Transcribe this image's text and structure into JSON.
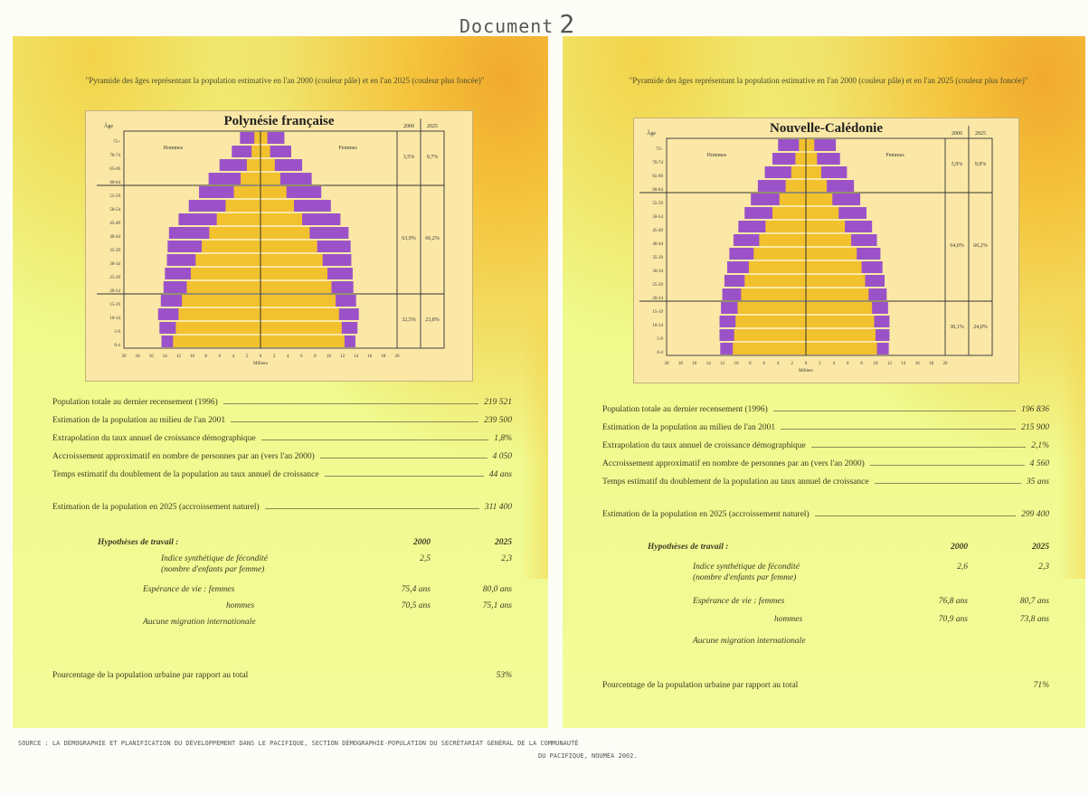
{
  "document": {
    "title_word": "Document",
    "title_num": "2"
  },
  "panels": [
    {
      "caption": "\"Pyramide des âges représentant la population estimative en l'an 2000 (couleur pâle) et en l'an 2025 (couleur plus foncée)\"",
      "territory": "Polynésie française",
      "left_label": "Hommes",
      "right_label": "Femmes",
      "col_year_1": "2000",
      "col_year_2": "2025",
      "age_label": "Âge",
      "axis_unit": "Milliers",
      "shares": [
        {
          "a": "3,5%",
          "b": "9,7%"
        },
        {
          "a": "63,9%",
          "b": "66,2%"
        },
        {
          "a": "32,5%",
          "b": "23,8%"
        }
      ],
      "stats": [
        {
          "label": "Population totale au dernier recensement (1996)",
          "value": "219 521"
        },
        {
          "label": "Estimation de la population au milieu de l'an 2001",
          "value": "239 500"
        },
        {
          "label": "Extrapolation du taux annuel de croissance démographique",
          "value": "1,8%"
        },
        {
          "label": "Accroissement approximatif en nombre de personnes par an (vers l'an 2000)",
          "value": "4 050"
        },
        {
          "label": "Temps estimatif du doublement de la population au taux annuel de croissance",
          "value": "44 ans"
        },
        {
          "label": "Estimation de la population en 2025 (accroissement naturel)",
          "value": "311 400"
        }
      ],
      "hyp": {
        "title": "Hypothèses de travail :",
        "y1": "2000",
        "y2": "2025",
        "fertility": "Indice synthétique de fécondité",
        "fertility_sub": "(nombre d'enfants par femme)",
        "fert_2000": "2,5",
        "fert_2025": "2,3",
        "life": "Espérance de vie : femmes",
        "life_f_2000": "75,4 ans",
        "life_f_2025": "80,0 ans",
        "men": "hommes",
        "life_m_2000": "70,5 ans",
        "life_m_2025": "75,1 ans",
        "migration": "Aucune migration internationale"
      },
      "urban": {
        "label": "Pourcentage de la population urbaine par rapport au total",
        "value": "53%"
      }
    },
    {
      "caption": "\"Pyramide des âges représentant la population estimative en l'an 2000 (couleur pâle) et en l'an 2025 (couleur plus foncée)\"",
      "territory": "Nouvelle-Calédonie",
      "left_label": "Hommes",
      "right_label": "Femmes",
      "col_year_1": "2000",
      "col_year_2": "2025",
      "age_label": "Âge",
      "axis_unit": "Milliers",
      "shares": [
        {
          "a": "5,9%",
          "b": "9,9%"
        },
        {
          "a": "64,0%",
          "b": "66,2%"
        },
        {
          "a": "30,1%",
          "b": "24,0%"
        }
      ],
      "stats": [
        {
          "label": "Population totale au dernier recensement (1996)",
          "value": "196 836"
        },
        {
          "label": "Estimation de la population au milieu de l'an 2001",
          "value": "215 900"
        },
        {
          "label": "Extrapolation du taux annuel de croissance démographique",
          "value": "2,1%"
        },
        {
          "label": "Accroissement approximatif en nombre de personnes par an (vers l'an 2000)",
          "value": "4 560"
        },
        {
          "label": "Temps estimatif du doublement de la population au taux annuel de croissance",
          "value": "35 ans"
        },
        {
          "label": "Estimation de la population en 2025 (accroissement naturel)",
          "value": "299 400"
        }
      ],
      "hyp": {
        "title": "Hypothèses de travail :",
        "y1": "2000",
        "y2": "2025",
        "fertility": "Indice synthétique de fécondité",
        "fertility_sub": "(nombre d'enfants par femme)",
        "fert_2000": "2,6",
        "fert_2025": "2,3",
        "life": "Espérance de vie : femmes",
        "life_f_2000": "76,8 ans",
        "life_f_2025": "80,7 ans",
        "men": "hommes",
        "life_m_2000": "70,9 ans",
        "life_m_2025": "73,8 ans",
        "migration": "Aucune migration internationale"
      },
      "urban": {
        "label": "Pourcentage de la population urbaine par rapport au total",
        "value": "71%"
      }
    }
  ],
  "source": {
    "line1": "SOURCE : LA DÉMOGRAPHIE ET PLANIFICATION DU DÉVELOPPEMENT DANS LE PACIFIQUE, SECTION DÉMOGRAPHIE-POPULATION DU SECRÉTARIAT GÉNÉRAL DE LA COMMUNAUTÉ",
    "line2": "DU PACIFIQUE, NOUMÉA 2002."
  },
  "chart_data": [
    {
      "type": "bar",
      "title": "Polynésie française",
      "categories": [
        "0-4",
        "5-9",
        "10-14",
        "15-19",
        "20-24",
        "25-29",
        "30-34",
        "35-39",
        "40-44",
        "45-49",
        "50-54",
        "55-59",
        "60-64",
        "65-69",
        "70-74",
        "75+"
      ],
      "series": [
        {
          "name": "Hommes 2000",
          "values": [
            12.8,
            12.4,
            12.0,
            11.5,
            10.8,
            10.2,
            9.5,
            8.6,
            7.5,
            6.4,
            5.1,
            3.9,
            2.9,
            2.0,
            1.3,
            0.9
          ]
        },
        {
          "name": "Hommes 2025",
          "values": [
            14.5,
            14.8,
            15.0,
            14.6,
            14.2,
            14.0,
            13.7,
            13.6,
            13.4,
            12.0,
            10.5,
            9.0,
            7.6,
            6.0,
            4.2,
            3.0
          ]
        },
        {
          "name": "Femmes 2000",
          "values": [
            12.3,
            11.9,
            11.5,
            11.0,
            10.4,
            9.8,
            9.1,
            8.3,
            7.2,
            6.1,
            4.9,
            3.8,
            2.9,
            2.1,
            1.4,
            1.0
          ]
        },
        {
          "name": "Femmes 2025",
          "values": [
            13.9,
            14.2,
            14.4,
            14.0,
            13.6,
            13.5,
            13.3,
            13.2,
            12.9,
            11.7,
            10.3,
            8.9,
            7.5,
            6.1,
            4.5,
            3.5
          ]
        }
      ],
      "xlim": [
        -20,
        20
      ],
      "xlabel": "Milliers",
      "ylabel": "Âge"
    },
    {
      "type": "bar",
      "title": "Nouvelle-Calédonie",
      "categories": [
        "0-4",
        "5-9",
        "10-14",
        "15-19",
        "20-24",
        "25-29",
        "30-34",
        "35-39",
        "40-44",
        "45-49",
        "50-54",
        "55-59",
        "60-64",
        "65-69",
        "70-74",
        "75+"
      ],
      "series": [
        {
          "name": "Hommes 2000",
          "values": [
            10.5,
            10.3,
            10.1,
            9.8,
            9.3,
            8.8,
            8.2,
            7.5,
            6.7,
            5.8,
            4.8,
            3.8,
            2.9,
            2.1,
            1.5,
            1.0
          ]
        },
        {
          "name": "Hommes 2025",
          "values": [
            12.3,
            12.4,
            12.4,
            12.2,
            12.0,
            11.7,
            11.3,
            11.0,
            10.4,
            9.7,
            8.8,
            7.9,
            6.9,
            5.9,
            4.8,
            4.0
          ]
        },
        {
          "name": "Femmes 2000",
          "values": [
            10.2,
            10.0,
            9.8,
            9.5,
            9.0,
            8.5,
            8.0,
            7.3,
            6.5,
            5.6,
            4.7,
            3.8,
            3.0,
            2.2,
            1.6,
            1.2
          ]
        },
        {
          "name": "Femmes 2025",
          "values": [
            11.9,
            12.0,
            12.0,
            11.8,
            11.6,
            11.3,
            11.0,
            10.7,
            10.2,
            9.5,
            8.7,
            7.8,
            6.9,
            5.9,
            4.9,
            4.3
          ]
        }
      ],
      "xlim": [
        -20,
        20
      ],
      "xlabel": "Milliers",
      "ylabel": "Âge"
    }
  ],
  "colors": {
    "pale": "#f2c12e",
    "dark": "#9b52c9"
  }
}
